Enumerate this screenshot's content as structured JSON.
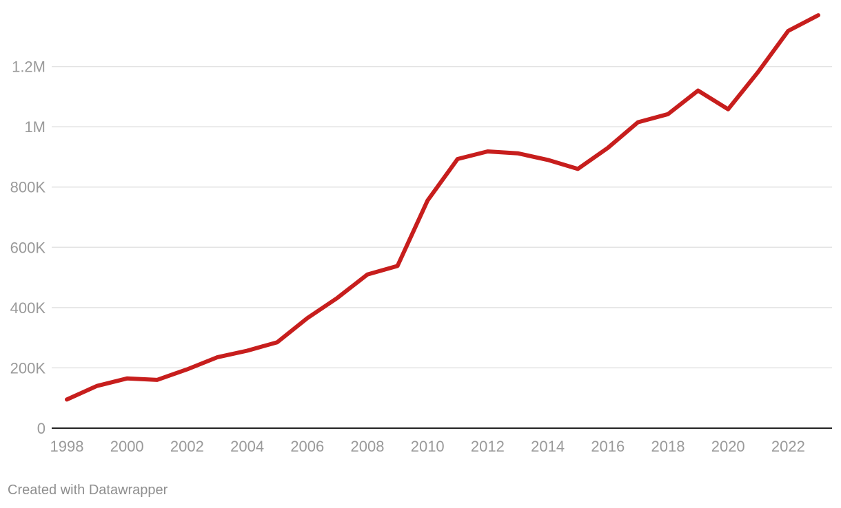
{
  "chart_data": {
    "type": "line",
    "x": [
      1998,
      1999,
      2000,
      2001,
      2002,
      2003,
      2004,
      2005,
      2006,
      2007,
      2008,
      2009,
      2010,
      2011,
      2012,
      2013,
      2014,
      2015,
      2016,
      2017,
      2018,
      2019,
      2020,
      2021,
      2022,
      2023
    ],
    "series": [
      {
        "values": [
          95000,
          140000,
          165000,
          160000,
          195000,
          235000,
          257000,
          285000,
          365000,
          432000,
          510000,
          538000,
          755000,
          893000,
          918000,
          912000,
          890000,
          860000,
          930000,
          1015000,
          1042000,
          1120000,
          1058000,
          1182000,
          1318000,
          1370000
        ],
        "color": "#c71e1d"
      }
    ],
    "x_ticks": [
      "1998",
      "2000",
      "2002",
      "2004",
      "2006",
      "2008",
      "2010",
      "2012",
      "2014",
      "2016",
      "2018",
      "2020",
      "2022"
    ],
    "y_ticks": [
      {
        "value": 0,
        "label": "0"
      },
      {
        "value": 200000,
        "label": "200K"
      },
      {
        "value": 400000,
        "label": "400K"
      },
      {
        "value": 600000,
        "label": "600K"
      },
      {
        "value": 800000,
        "label": "800K"
      },
      {
        "value": 1000000,
        "label": "1M"
      },
      {
        "value": 1200000,
        "label": "1.2M"
      }
    ],
    "ylim": [
      0,
      1400000
    ],
    "xlim": [
      1998,
      2023
    ],
    "grid": true
  },
  "footer": {
    "credit": "Created with Datawrapper"
  }
}
